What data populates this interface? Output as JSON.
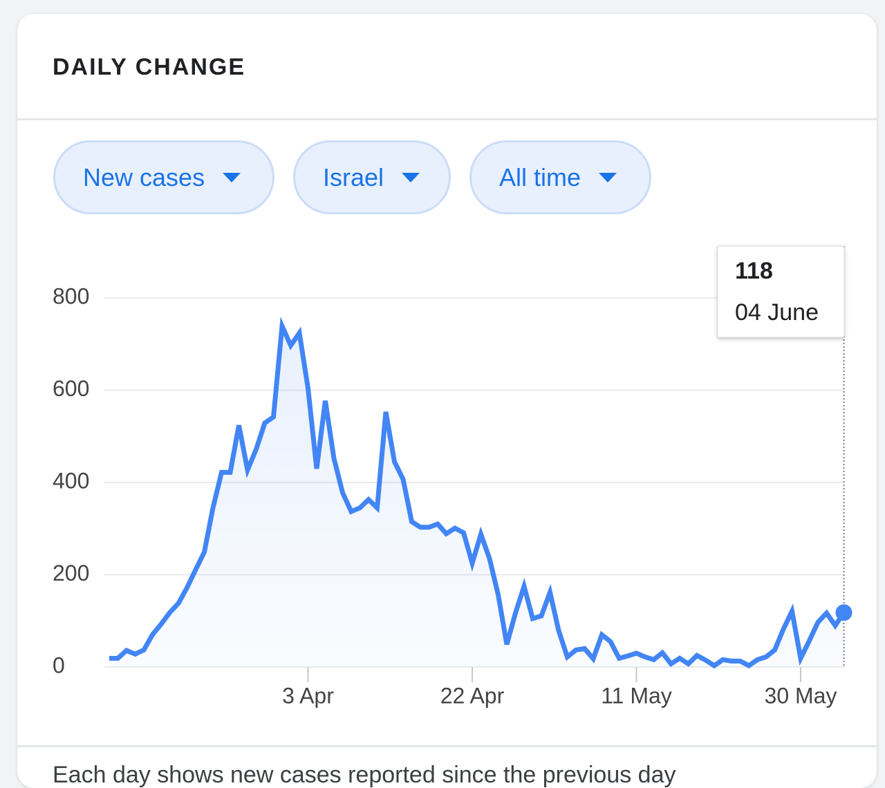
{
  "header": {
    "title": "DAILY CHANGE"
  },
  "filters": [
    "New cases",
    "Israel",
    "All time"
  ],
  "chart_data": {
    "type": "line",
    "categories": [
      null,
      null,
      null,
      null,
      null,
      null,
      null,
      null,
      null,
      null,
      null,
      null,
      null,
      null,
      null,
      null,
      null,
      null,
      null,
      null,
      null,
      null,
      null,
      "3 Apr",
      null,
      null,
      null,
      null,
      null,
      null,
      null,
      null,
      null,
      null,
      null,
      null,
      null,
      null,
      null,
      null,
      null,
      null,
      "22 Apr",
      null,
      null,
      null,
      null,
      null,
      null,
      null,
      null,
      null,
      null,
      null,
      null,
      null,
      null,
      null,
      null,
      null,
      null,
      "11 May",
      null,
      null,
      null,
      null,
      null,
      null,
      null,
      null,
      null,
      null,
      null,
      null,
      null,
      null,
      null,
      null,
      null,
      null,
      "30 May",
      null,
      null,
      null,
      null,
      null
    ],
    "series": [
      {
        "name": "New cases",
        "color": "#4285f4",
        "values": [
          19,
          19,
          36,
          28,
          37,
          70,
          93,
          118,
          138,
          172,
          211,
          249,
          345,
          422,
          422,
          524,
          427,
          472,
          529,
          542,
          739,
          697,
          724,
          604,
          430,
          577,
          452,
          378,
          337,
          345,
          363,
          345,
          553,
          445,
          407,
          315,
          303,
          303,
          310,
          289,
          301,
          291,
          225,
          288,
          235,
          157,
          49,
          117,
          175,
          105,
          111,
          162,
          79,
          22,
          37,
          40,
          18,
          70,
          55,
          19,
          24,
          30,
          22,
          16,
          31,
          7,
          19,
          7,
          25,
          15,
          3,
          16,
          13,
          13,
          3,
          16,
          22,
          37,
          82,
          121,
          19,
          57,
          97,
          117,
          90,
          118
        ]
      }
    ],
    "ylim": [
      0,
      800
    ],
    "yticks": [
      0,
      200,
      400,
      600,
      800
    ],
    "grid": true
  },
  "tooltip": {
    "date": "04 June"
  },
  "footer": {
    "text": "Each day shows new cases reported since the previous day"
  }
}
